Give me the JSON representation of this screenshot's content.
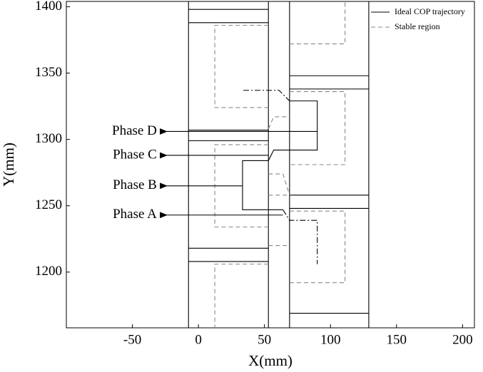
{
  "chart_data": {
    "type": "line",
    "x_label": "X(mm)",
    "y_label": "Y(mm)",
    "xlim": [
      -100,
      209
    ],
    "ylim": [
      1158,
      1404
    ],
    "xticks": [
      -50,
      0,
      50,
      100,
      150,
      200
    ],
    "yticks": [
      1200,
      1250,
      1300,
      1350,
      1400
    ],
    "legend": "upper right",
    "series": [
      {
        "name": "Ideal COP trajectory",
        "color": "#000000",
        "dash": "solid",
        "x": [
          -7.5,
          -7.5,
          null,
          53,
          53,
          null,
          69,
          69,
          null,
          129,
          129,
          null,
          -7.5,
          53,
          null,
          -7.5,
          53,
          null,
          -7.5,
          53,
          null,
          -7.5,
          53,
          null,
          -7.5,
          53,
          null,
          -7.5,
          53,
          null,
          69,
          129,
          null,
          69,
          129,
          null,
          69,
          129,
          null,
          69,
          129,
          null,
          69,
          129,
          null,
          69,
          90,
          90,
          57,
          53,
          33.4,
          33.4,
          64
        ],
        "values": [
          1158,
          1404,
          null,
          1158,
          1404,
          null,
          1158,
          1404,
          null,
          1158,
          1404,
          null,
          1398,
          1398,
          null,
          1388,
          1388,
          null,
          1307,
          1307,
          null,
          1299,
          1299,
          null,
          1218,
          1218,
          null,
          1208,
          1208,
          null,
          1348,
          1348,
          null,
          1338,
          1338,
          null,
          1258,
          1258,
          null,
          1248,
          1248,
          null,
          1169,
          1169,
          null,
          1329,
          1329,
          1292,
          1292,
          1284,
          1284,
          1247,
          1247
        ]
      },
      {
        "name": "Stable region",
        "color": "#888888",
        "dash": "dashed",
        "x": [
          53,
          12.4,
          12.4,
          53,
          null,
          53,
          12.4,
          12.4,
          53,
          null,
          53,
          12.4,
          12.4,
          null,
          69,
          111,
          111,
          null,
          69,
          111,
          111,
          69,
          null,
          69,
          111,
          111,
          69,
          null,
          53,
          57,
          69,
          null,
          53,
          64,
          69,
          null,
          53,
          69,
          null,
          53,
          69
        ],
        "values": [
          1386,
          1386,
          1324,
          1324,
          null,
          1296,
          1296,
          1234,
          1234,
          null,
          1206,
          1206,
          1158,
          null,
          1372,
          1372,
          1404,
          null,
          1336,
          1336,
          1281,
          1281,
          null,
          1246,
          1246,
          1192,
          1192,
          null,
          1308,
          1317,
          1317,
          null,
          1274,
          1274,
          1258,
          null,
          1258,
          1258,
          null,
          1220,
          1220
        ]
      },
      {
        "color": "#000000",
        "dash": "dashdot",
        "x": [
          34,
          61,
          69,
          null,
          64,
          69,
          90,
          90
        ],
        "values": [
          1337,
          1337,
          1329,
          null,
          1247,
          1239,
          1239,
          1206
        ]
      }
    ],
    "annotations": [
      {
        "text": "Phase D",
        "y": 1306,
        "x_from": 90,
        "x_to": -25
      },
      {
        "text": "Phase C",
        "y": 1288,
        "x_from": 53,
        "x_to": -25
      },
      {
        "text": "Phase B",
        "y": 1265,
        "x_from": 33.4,
        "x_to": -25
      },
      {
        "text": "Phase A",
        "y": 1243,
        "x_from": 64,
        "x_to": -25
      }
    ]
  }
}
